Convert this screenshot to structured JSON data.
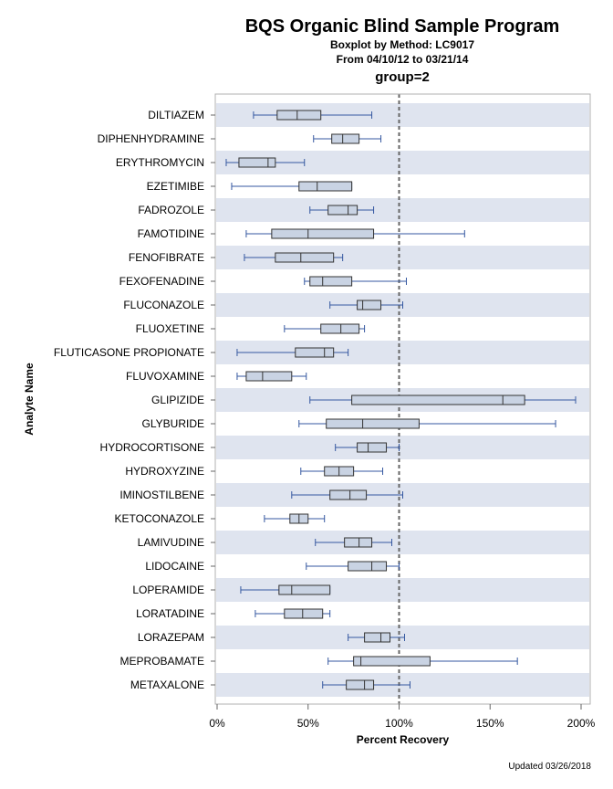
{
  "header": {
    "title": "BQS Organic Blind Sample Program",
    "subtitle1": "Boxplot by Method: LC9017",
    "subtitle2": "From 04/10/12 to 03/21/14",
    "group": "group=2"
  },
  "footer": "Updated 03/26/2018",
  "colors": {
    "band": "#dfe4ef",
    "box_fill": "#c9d3e3",
    "whisker": "#3457a0",
    "ref_line": "#666666"
  },
  "chart_data": {
    "type": "boxplot",
    "xlabel": "Percent Recovery",
    "ylabel": "Analyte Name",
    "xlim": [
      0,
      200
    ],
    "xticks": [
      0,
      50,
      100,
      150,
      200
    ],
    "xtick_labels": [
      "0%",
      "50%",
      "100%",
      "150%",
      "200%"
    ],
    "reference_line": 100,
    "categories": [
      "DILTIAZEM",
      "DIPHENHYDRAMINE",
      "ERYTHROMYCIN",
      "EZETIMIBE",
      "FADROZOLE",
      "FAMOTIDINE",
      "FENOFIBRATE",
      "FEXOFENADINE",
      "FLUCONAZOLE",
      "FLUOXETINE",
      "FLUTICASONE PROPIONATE",
      "FLUVOXAMINE",
      "GLIPIZIDE",
      "GLYBURIDE",
      "HYDROCORTISONE",
      "HYDROXYZINE",
      "IMINOSTILBENE",
      "KETOCONAZOLE",
      "LAMIVUDINE",
      "LIDOCAINE",
      "LOPERAMIDE",
      "LORATADINE",
      "LORAZEPAM",
      "MEPROBAMATE",
      "METAXALONE"
    ],
    "boxes": [
      {
        "min": 20,
        "q1": 33,
        "median": 44,
        "q3": 57,
        "max": 85
      },
      {
        "min": 53,
        "q1": 63,
        "median": 69,
        "q3": 78,
        "max": 90
      },
      {
        "min": 5,
        "q1": 12,
        "median": 28,
        "q3": 32,
        "max": 48
      },
      {
        "min": 8,
        "q1": 45,
        "median": 55,
        "q3": 74,
        "max": 74
      },
      {
        "min": 51,
        "q1": 61,
        "median": 72,
        "q3": 77,
        "max": 86
      },
      {
        "min": 16,
        "q1": 30,
        "median": 50,
        "q3": 86,
        "max": 136
      },
      {
        "min": 15,
        "q1": 32,
        "median": 46,
        "q3": 64,
        "max": 69
      },
      {
        "min": 48,
        "q1": 51,
        "median": 58,
        "q3": 74,
        "max": 104
      },
      {
        "min": 62,
        "q1": 77,
        "median": 80,
        "q3": 90,
        "max": 102
      },
      {
        "min": 37,
        "q1": 57,
        "median": 68,
        "q3": 78,
        "max": 81
      },
      {
        "min": 11,
        "q1": 43,
        "median": 59,
        "q3": 64,
        "max": 72
      },
      {
        "min": 11,
        "q1": 16,
        "median": 25,
        "q3": 41,
        "max": 49
      },
      {
        "min": 51,
        "q1": 74,
        "median": 157,
        "q3": 169,
        "max": 197
      },
      {
        "min": 45,
        "q1": 60,
        "median": 80,
        "q3": 111,
        "max": 186
      },
      {
        "min": 65,
        "q1": 77,
        "median": 83,
        "q3": 93,
        "max": 100
      },
      {
        "min": 46,
        "q1": 59,
        "median": 67,
        "q3": 75,
        "max": 91
      },
      {
        "min": 41,
        "q1": 62,
        "median": 73,
        "q3": 82,
        "max": 102
      },
      {
        "min": 26,
        "q1": 40,
        "median": 45,
        "q3": 50,
        "max": 59
      },
      {
        "min": 54,
        "q1": 70,
        "median": 78,
        "q3": 85,
        "max": 96
      },
      {
        "min": 49,
        "q1": 72,
        "median": 85,
        "q3": 93,
        "max": 100
      },
      {
        "min": 13,
        "q1": 34,
        "median": 41,
        "q3": 62,
        "max": 62
      },
      {
        "min": 21,
        "q1": 37,
        "median": 47,
        "q3": 58,
        "max": 62
      },
      {
        "min": 72,
        "q1": 81,
        "median": 90,
        "q3": 95,
        "max": 103
      },
      {
        "min": 61,
        "q1": 75,
        "median": 79,
        "q3": 117,
        "max": 165
      },
      {
        "min": 58,
        "q1": 71,
        "median": 81,
        "q3": 86,
        "max": 106
      }
    ]
  }
}
